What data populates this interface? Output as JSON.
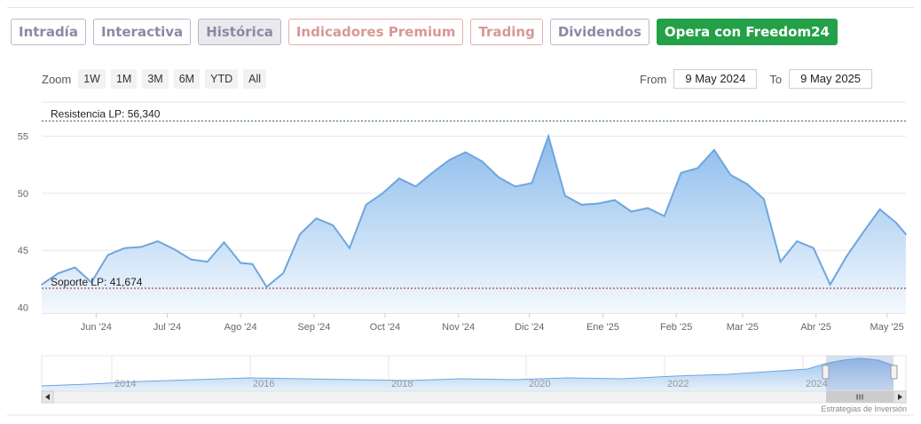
{
  "tabs": [
    {
      "label": "Intradía",
      "style": "normal"
    },
    {
      "label": "Interactiva",
      "style": "normal"
    },
    {
      "label": "Histórica",
      "style": "active"
    },
    {
      "label": "Indicadores Premium",
      "style": "premium"
    },
    {
      "label": "Trading",
      "style": "trade"
    },
    {
      "label": "Dividendos",
      "style": "normal"
    },
    {
      "label": "Opera con Freedom24",
      "style": "cta"
    }
  ],
  "zoom": {
    "label": "Zoom",
    "buttons": [
      "1W",
      "1M",
      "3M",
      "6M",
      "YTD",
      "All"
    ]
  },
  "range": {
    "from_label": "From",
    "from_value": "9 May 2024",
    "to_label": "To",
    "to_value": "9 May 2025"
  },
  "credit": "Estrategias de Inversión",
  "colors": {
    "line": "#6ea6de",
    "fill_top": "#8cbcec",
    "fill_bottom": "#f4f9fe",
    "resistance": "#2d6b2d",
    "support": "#8a1f1f",
    "cta": "#24a148"
  },
  "chart_data": {
    "type": "area",
    "title": "",
    "ylim": [
      39.5,
      58
    ],
    "yticks": [
      40,
      45,
      50,
      55
    ],
    "xlabels": [
      "Jun '24",
      "Jul '24",
      "Ago '24",
      "Sep '24",
      "Oct '24",
      "Nov '24",
      "Dic '24",
      "Ene '25",
      "Feb '25",
      "Mar '25",
      "Abr '25",
      "May '25"
    ],
    "x": [
      "2024-05-09",
      "2024-05-16",
      "2024-05-23",
      "2024-05-30",
      "2024-06-06",
      "2024-06-13",
      "2024-06-20",
      "2024-06-27",
      "2024-07-04",
      "2024-07-11",
      "2024-07-18",
      "2024-07-25",
      "2024-08-01",
      "2024-08-06",
      "2024-08-12",
      "2024-08-19",
      "2024-08-26",
      "2024-09-02",
      "2024-09-09",
      "2024-09-16",
      "2024-09-23",
      "2024-09-30",
      "2024-10-07",
      "2024-10-14",
      "2024-10-21",
      "2024-10-28",
      "2024-11-04",
      "2024-11-11",
      "2024-11-18",
      "2024-11-25",
      "2024-12-02",
      "2024-12-09",
      "2024-12-16",
      "2024-12-23",
      "2024-12-30",
      "2025-01-06",
      "2025-01-13",
      "2025-01-20",
      "2025-01-27",
      "2025-02-03",
      "2025-02-10",
      "2025-02-17",
      "2025-02-24",
      "2025-03-03",
      "2025-03-10",
      "2025-03-17",
      "2025-03-24",
      "2025-03-31",
      "2025-04-07",
      "2025-04-14",
      "2025-04-21",
      "2025-04-28",
      "2025-05-05",
      "2025-05-09"
    ],
    "series": [
      {
        "values": [
          42.0,
          43.0,
          43.5,
          42.2,
          44.6,
          45.2,
          45.3,
          45.8,
          45.1,
          44.2,
          44.0,
          45.7,
          43.9,
          43.8,
          41.8,
          43.0,
          46.4,
          47.8,
          47.2,
          45.2,
          49.0,
          50.0,
          51.3,
          50.6,
          51.8,
          52.9,
          53.6,
          52.8,
          51.4,
          50.6,
          50.9,
          55.0,
          49.8,
          49.0,
          49.1,
          49.4,
          48.4,
          48.7,
          48.0,
          51.8,
          52.2,
          53.8,
          51.6,
          50.8,
          49.5,
          44.0,
          45.8,
          45.2,
          42.0,
          44.5,
          46.6,
          48.6,
          47.4,
          46.4
        ]
      }
    ],
    "resistance": {
      "label": "Resistencia LP: 56,340",
      "value": 56.34
    },
    "support": {
      "label": "Soporte LP: 41,674",
      "value": 41.674
    },
    "navigator": {
      "labels": [
        "2014",
        "2016",
        "2018",
        "2020",
        "2022",
        "2024"
      ]
    }
  }
}
